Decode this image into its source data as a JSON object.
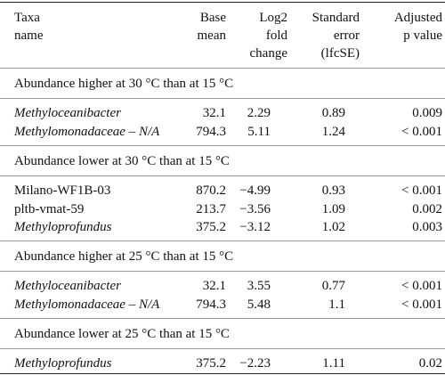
{
  "table": {
    "columns": [
      [
        "Taxa",
        "name"
      ],
      [
        "Base",
        "mean"
      ],
      [
        "Log2",
        "fold",
        "change"
      ],
      [
        "Standard",
        "error",
        "(lfcSE)"
      ],
      [
        "Adjusted",
        "p value"
      ]
    ],
    "sections": [
      {
        "title": "Abundance higher at 30 °C than at 15 °C",
        "rows": [
          {
            "cells": [
              "Methyloceanibacter",
              "32.1",
              "2.29",
              "0.89",
              "0.009"
            ],
            "italic": true
          },
          {
            "cells": [
              "Methylomonadaceae – N/A",
              "794.3",
              "5.11",
              "1.24",
              "< 0.001"
            ],
            "italic": true
          }
        ]
      },
      {
        "title": "Abundance lower at 30 °C than at 15 °C",
        "rows": [
          {
            "cells": [
              "Milano-WF1B-03",
              "870.2",
              "−4.99",
              "0.93",
              "< 0.001"
            ],
            "italic": false
          },
          {
            "cells": [
              "pltb-vmat-59",
              "213.7",
              "−3.56",
              "1.09",
              "0.002"
            ],
            "italic": false
          },
          {
            "cells": [
              "Methyloprofundus",
              "375.2",
              "−3.12",
              "1.02",
              "0.003"
            ],
            "italic": true
          }
        ]
      },
      {
        "title": "Abundance higher at 25 °C than at 15 °C",
        "rows": [
          {
            "cells": [
              "Methyloceanibacter",
              "32.1",
              "3.55",
              "0.77",
              "< 0.001"
            ],
            "italic": true
          },
          {
            "cells": [
              "Methylomonadaceae – N/A",
              "794.3",
              "5.48",
              "1.1",
              "< 0.001"
            ],
            "italic": true
          }
        ]
      },
      {
        "title": "Abundance lower at 25 °C than at 15 °C",
        "rows": [
          {
            "cells": [
              "Methyloprofundus",
              "375.2",
              "−2.23",
              "1.11",
              "0.02"
            ],
            "italic": true
          }
        ]
      }
    ]
  }
}
